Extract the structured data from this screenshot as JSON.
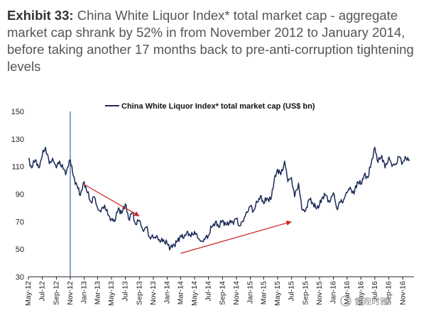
{
  "header": {
    "exhibit_label": "Exhibit 33:",
    "exhibit_text": "China White Liquor Index* total market cap - aggregate market cap shrank by 52% in from November 2012 to January 2014, before taking another 17 months back to pre-anti-corruption tightening levels"
  },
  "watermark": "鲁观时雅",
  "chart_data": {
    "type": "line",
    "title": "",
    "xlabel": "",
    "ylabel": "",
    "ylim": [
      30,
      150
    ],
    "yticks": [
      "150",
      "130",
      "110",
      "90",
      "70",
      "50",
      "30"
    ],
    "ytick_values": [
      150,
      130,
      110,
      90,
      70,
      50,
      30
    ],
    "categories": [
      "May-12",
      "Jul-12",
      "Sep-12",
      "Nov-12",
      "Jan-13",
      "Mar-13",
      "May-13",
      "Jul-13",
      "Sep-13",
      "Nov-13",
      "Jan-14",
      "Mar-14",
      "May-14",
      "Jul-14",
      "Sep-14",
      "Nov-14",
      "Jan-15",
      "Mar-15",
      "May-15",
      "Jul-15",
      "Sep-15",
      "Nov-15",
      "Jan-16",
      "Mar-16",
      "May-16",
      "Jul-16",
      "Sep-16",
      "Nov-16"
    ],
    "legend_position": "top",
    "grid": false,
    "vertical_marker_at": "Nov-12",
    "colors": {
      "series": "#1b2a57",
      "arrow": "#cc2222",
      "marker": "#4a6fa5"
    },
    "annotations": [
      {
        "type": "arrow",
        "from": [
          "Jan-13",
          97
        ],
        "to": [
          "Sep-13",
          74
        ]
      },
      {
        "type": "arrow",
        "from": [
          "Mar-14",
          47
        ],
        "to": [
          "Jul-15",
          70
        ]
      }
    ],
    "series": [
      {
        "name": "China White Liquor Index* total market cap (US$ bn)",
        "x": [
          "2012-05",
          "2012-05-15",
          "2012-06",
          "2012-06-15",
          "2012-07",
          "2012-07-15",
          "2012-08",
          "2012-08-15",
          "2012-09",
          "2012-09-15",
          "2012-10",
          "2012-10-15",
          "2012-11",
          "2012-11-15",
          "2012-12",
          "2012-12-15",
          "2013-01",
          "2013-01-15",
          "2013-02",
          "2013-02-15",
          "2013-03",
          "2013-03-15",
          "2013-04",
          "2013-04-15",
          "2013-05",
          "2013-05-15",
          "2013-06",
          "2013-06-15",
          "2013-07",
          "2013-07-15",
          "2013-08",
          "2013-08-15",
          "2013-09",
          "2013-09-15",
          "2013-10",
          "2013-10-15",
          "2013-11",
          "2013-11-15",
          "2013-12",
          "2013-12-15",
          "2014-01",
          "2014-01-15",
          "2014-02",
          "2014-02-15",
          "2014-03",
          "2014-03-15",
          "2014-04",
          "2014-04-15",
          "2014-05",
          "2014-05-15",
          "2014-06",
          "2014-06-15",
          "2014-07",
          "2014-07-15",
          "2014-08",
          "2014-08-15",
          "2014-09",
          "2014-09-15",
          "2014-10",
          "2014-10-15",
          "2014-11",
          "2014-11-15",
          "2014-12",
          "2014-12-15",
          "2015-01",
          "2015-01-15",
          "2015-02",
          "2015-02-15",
          "2015-03",
          "2015-03-15",
          "2015-04",
          "2015-04-15",
          "2015-05",
          "2015-05-15",
          "2015-06",
          "2015-06-15",
          "2015-07",
          "2015-07-15",
          "2015-08",
          "2015-08-15",
          "2015-09",
          "2015-09-15",
          "2015-10",
          "2015-10-15",
          "2015-11",
          "2015-11-15",
          "2015-12",
          "2015-12-15",
          "2016-01",
          "2016-01-15",
          "2016-02",
          "2016-02-15",
          "2016-03",
          "2016-03-15",
          "2016-04",
          "2016-04-15",
          "2016-05",
          "2016-05-15",
          "2016-06",
          "2016-06-15",
          "2016-07",
          "2016-07-15",
          "2016-08",
          "2016-08-15",
          "2016-09",
          "2016-09-15",
          "2016-10",
          "2016-10-15",
          "2016-11",
          "2016-11-15",
          "2016-12"
        ],
        "values": [
          116,
          109,
          115,
          109,
          118,
          124,
          112,
          116,
          109,
          114,
          108,
          106,
          115,
          103,
          96,
          89,
          99,
          91,
          84,
          88,
          80,
          77,
          82,
          75,
          72,
          70,
          80,
          76,
          83,
          72,
          77,
          68,
          71,
          64,
          66,
          59,
          58,
          60,
          55,
          57,
          54,
          51,
          53,
          56,
          60,
          58,
          63,
          59,
          63,
          58,
          56,
          57,
          60,
          66,
          70,
          66,
          71,
          68,
          69,
          70,
          72,
          67,
          70,
          77,
          81,
          78,
          84,
          89,
          83,
          87,
          86,
          99,
          108,
          104,
          114,
          99,
          102,
          88,
          98,
          79,
          78,
          86,
          84,
          80,
          82,
          88,
          89,
          84,
          91,
          80,
          84,
          86,
          91,
          95,
          90,
          99,
          97,
          104,
          102,
          112,
          124,
          113,
          118,
          109,
          117,
          110,
          112,
          117,
          113,
          116,
          115
        ]
      }
    ]
  }
}
